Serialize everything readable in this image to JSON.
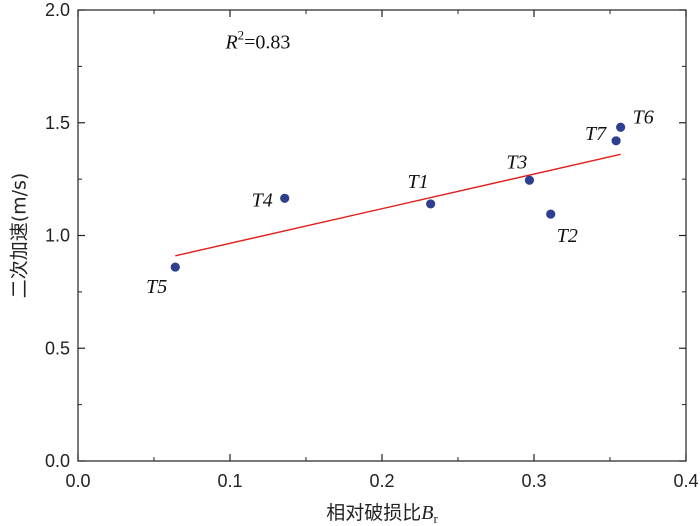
{
  "chart_data": {
    "type": "scatter",
    "title": "",
    "xlabel": "相对破损比",
    "xlabel_var": "B",
    "xlabel_sub": "r",
    "ylabel": "二次加速(m/s)",
    "xlim": [
      0.0,
      0.4
    ],
    "ylim": [
      0.0,
      2.0
    ],
    "xticks": [
      0.0,
      0.1,
      0.2,
      0.3,
      0.4
    ],
    "yticks": [
      0.0,
      0.5,
      1.0,
      1.5,
      2.0
    ],
    "xtick_labels": [
      "0.0",
      "0.1",
      "0.2",
      "0.3",
      "0.4"
    ],
    "ytick_labels": [
      "0.0",
      "0.5",
      "1.0",
      "1.5",
      "2.0"
    ],
    "grid": false,
    "points": [
      {
        "label": "T1",
        "x": 0.232,
        "y": 1.14
      },
      {
        "label": "T2",
        "x": 0.311,
        "y": 1.095
      },
      {
        "label": "T3",
        "x": 0.297,
        "y": 1.245
      },
      {
        "label": "T4",
        "x": 0.136,
        "y": 1.165
      },
      {
        "label": "T5",
        "x": 0.064,
        "y": 0.86
      },
      {
        "label": "T6",
        "x": 0.357,
        "y": 1.48
      },
      {
        "label": "T7",
        "x": 0.354,
        "y": 1.42
      }
    ],
    "fit_line": {
      "x": [
        0.064,
        0.357
      ],
      "y": [
        0.91,
        1.36
      ],
      "color": "#e0201c"
    },
    "annotation": {
      "prefix": "R",
      "sup": "2",
      "text": "=0.83",
      "x": 0.097,
      "y": 1.83
    },
    "point_color": "#2e3f8f",
    "axis_color": "#222222"
  }
}
